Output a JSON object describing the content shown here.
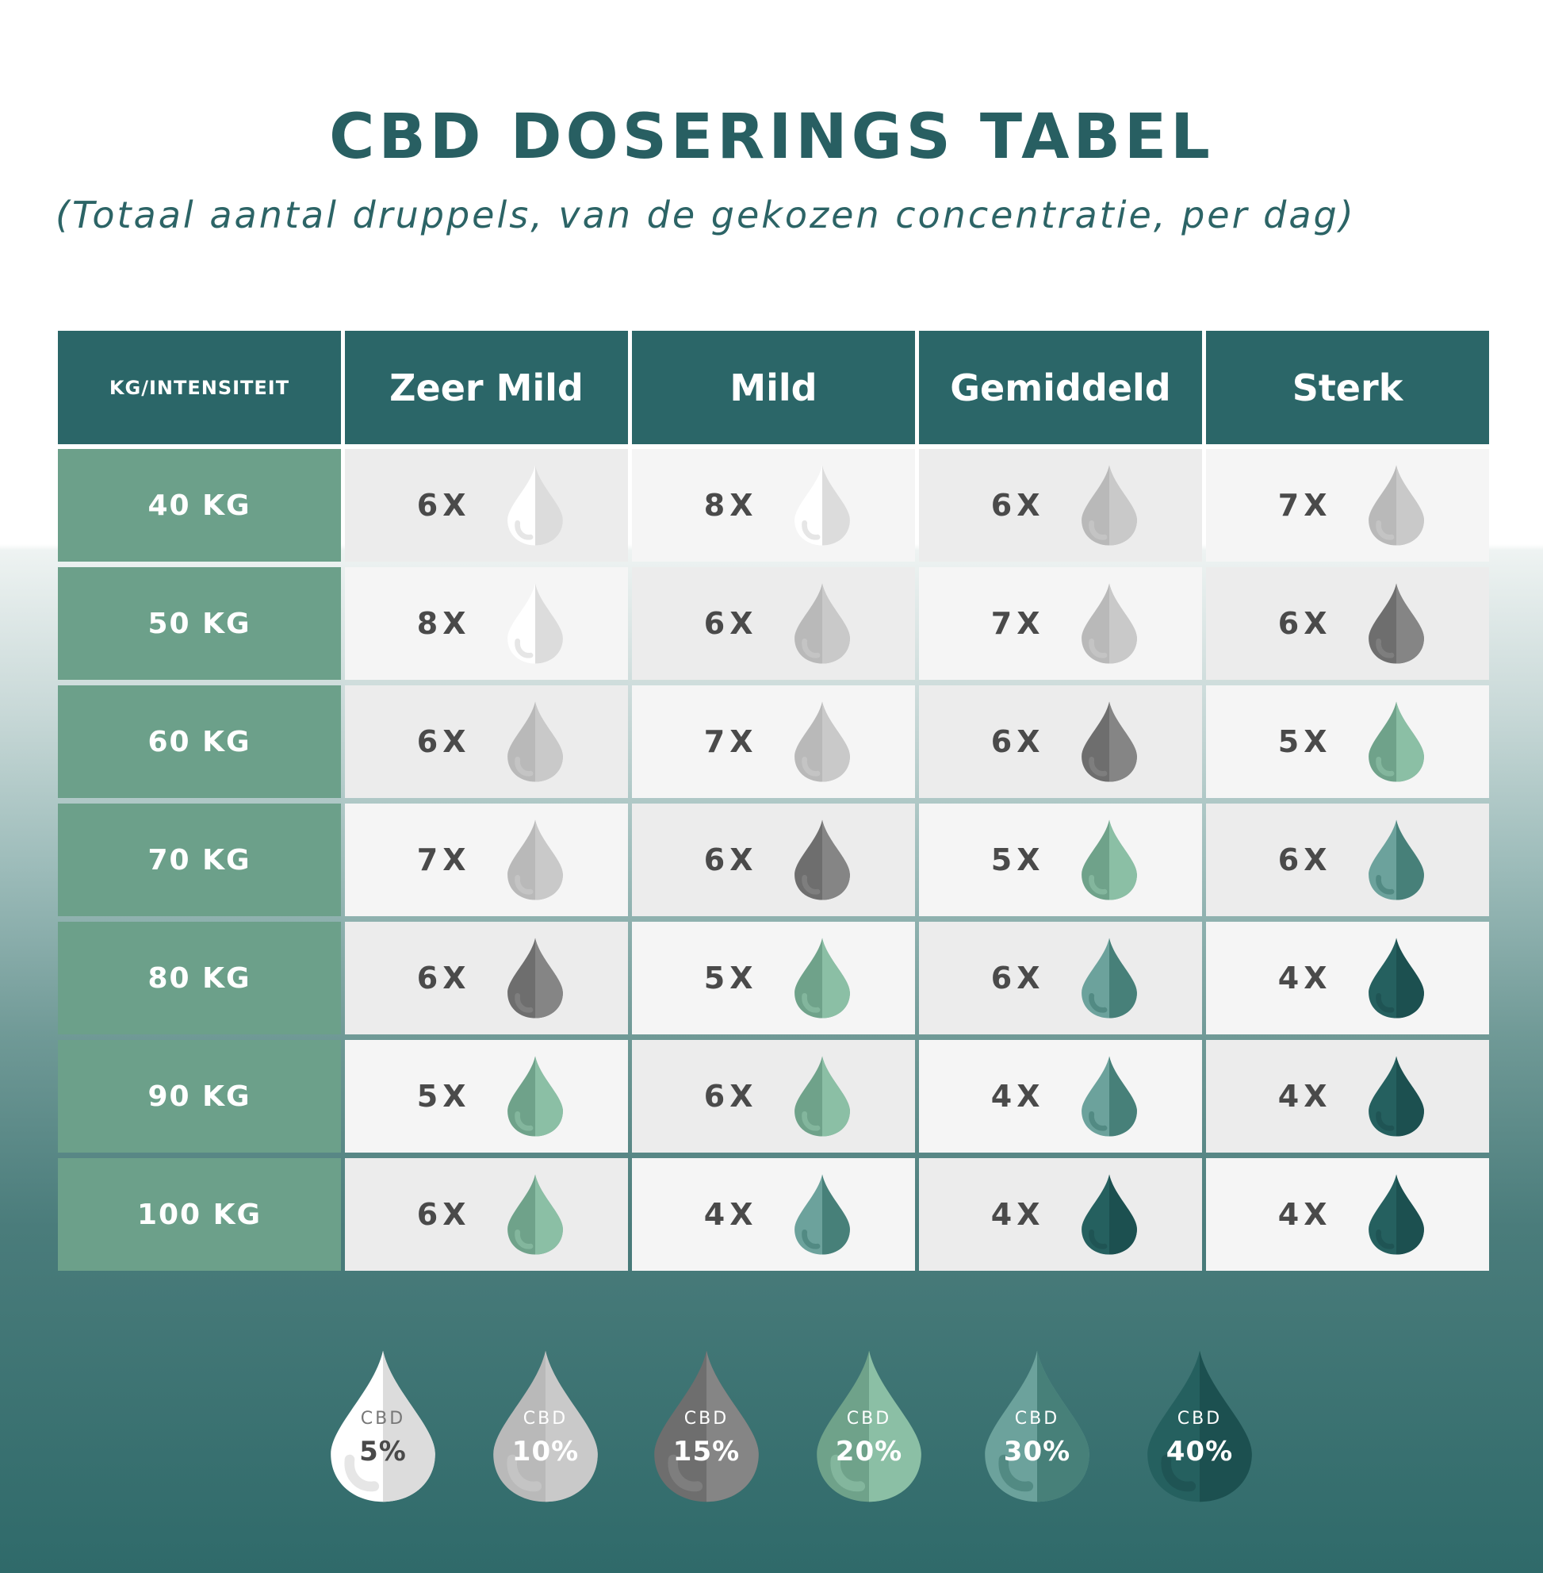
{
  "title": "CBD DOSERINGS TABEL",
  "subtitle": "(Totaal aantal druppels, van de gekozen concentratie, per dag)",
  "table": {
    "corner_label": "KG/INTENSITEIT",
    "columns": [
      "Zeer Mild",
      "Mild",
      "Gemiddeld",
      "Sterk"
    ],
    "rows": [
      {
        "label": "40 KG",
        "cells": [
          {
            "dose": "6X",
            "conc": "5%"
          },
          {
            "dose": "8X",
            "conc": "5%"
          },
          {
            "dose": "6X",
            "conc": "10%"
          },
          {
            "dose": "7X",
            "conc": "10%"
          }
        ]
      },
      {
        "label": "50 KG",
        "cells": [
          {
            "dose": "8X",
            "conc": "5%"
          },
          {
            "dose": "6X",
            "conc": "10%"
          },
          {
            "dose": "7X",
            "conc": "10%"
          },
          {
            "dose": "6X",
            "conc": "15%"
          }
        ]
      },
      {
        "label": "60 KG",
        "cells": [
          {
            "dose": "6X",
            "conc": "10%"
          },
          {
            "dose": "7X",
            "conc": "10%"
          },
          {
            "dose": "6X",
            "conc": "15%"
          },
          {
            "dose": "5X",
            "conc": "20%"
          }
        ]
      },
      {
        "label": "70 KG",
        "cells": [
          {
            "dose": "7X",
            "conc": "10%"
          },
          {
            "dose": "6X",
            "conc": "15%"
          },
          {
            "dose": "5X",
            "conc": "20%"
          },
          {
            "dose": "6X",
            "conc": "30%"
          }
        ]
      },
      {
        "label": "80 KG",
        "cells": [
          {
            "dose": "6X",
            "conc": "15%"
          },
          {
            "dose": "5X",
            "conc": "20%"
          },
          {
            "dose": "6X",
            "conc": "30%"
          },
          {
            "dose": "4X",
            "conc": "40%"
          }
        ]
      },
      {
        "label": "90 KG",
        "cells": [
          {
            "dose": "5X",
            "conc": "20%"
          },
          {
            "dose": "6X",
            "conc": "20%"
          },
          {
            "dose": "4X",
            "conc": "30%"
          },
          {
            "dose": "4X",
            "conc": "40%"
          }
        ]
      },
      {
        "label": "100 KG",
        "cells": [
          {
            "dose": "6X",
            "conc": "20%"
          },
          {
            "dose": "4X",
            "conc": "30%"
          },
          {
            "dose": "4X",
            "conc": "40%"
          },
          {
            "dose": "4X",
            "conc": "40%"
          }
        ]
      }
    ]
  },
  "legend": [
    {
      "prefix": "CBD",
      "percent": "5%",
      "left": "#ffffff",
      "right": "#dcdcdc",
      "text": "#4a4a4a",
      "cbd_text": "#777777"
    },
    {
      "prefix": "CBD",
      "percent": "10%",
      "left": "#b9b9b9",
      "right": "#c9c9c9",
      "text": "#ffffff",
      "cbd_text": "#ffffff"
    },
    {
      "prefix": "CBD",
      "percent": "15%",
      "left": "#6e6e6e",
      "right": "#858585",
      "text": "#ffffff",
      "cbd_text": "#ffffff"
    },
    {
      "prefix": "CBD",
      "percent": "20%",
      "left": "#6fa28a",
      "right": "#8bbfa5",
      "text": "#ffffff",
      "cbd_text": "#ffffff"
    },
    {
      "prefix": "CBD",
      "percent": "30%",
      "left": "#6ca29c",
      "right": "#478079",
      "text": "#ffffff",
      "cbd_text": "#ffffff"
    },
    {
      "prefix": "CBD",
      "percent": "40%",
      "left": "#25605f",
      "right": "#1c5050",
      "text": "#ffffff",
      "cbd_text": "#ffffff"
    }
  ],
  "colors": {
    "header": "#2b6668",
    "row_label": "#6ca08a",
    "title": "#285f62"
  }
}
